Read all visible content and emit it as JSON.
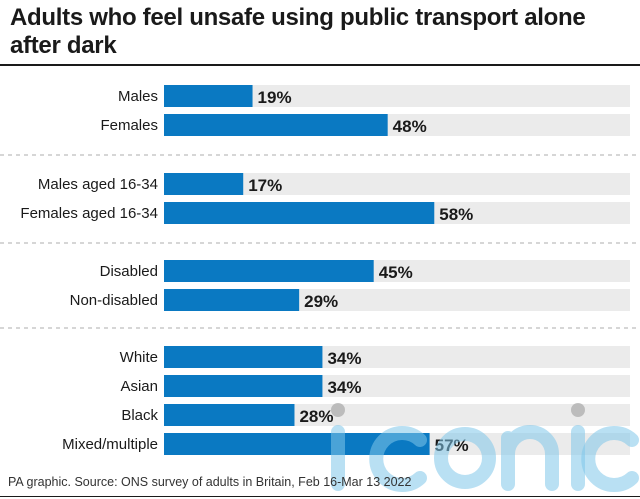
{
  "title": "Adults who feel unsafe using public transport alone after dark",
  "source": "PA graphic. Source: ONS survey of adults in Britain, Feb 16-Mar 13 2022",
  "watermark": "iconic",
  "colors": {
    "bar": "#0a79c2",
    "track": "#ebebeb",
    "divider": "#bdbdbd",
    "text": "#1a1a1a"
  },
  "chart_data": {
    "type": "bar",
    "orientation": "horizontal",
    "title": "Adults who feel unsafe using public transport alone after dark",
    "xlim": [
      0,
      100
    ],
    "grid": false,
    "legend": "none",
    "unit": "%",
    "groups": [
      {
        "categories": [
          "Males",
          "Females"
        ],
        "values": [
          19,
          48
        ]
      },
      {
        "categories": [
          "Males aged 16-34",
          "Females aged 16-34"
        ],
        "values": [
          17,
          58
        ]
      },
      {
        "categories": [
          "Disabled",
          "Non-disabled"
        ],
        "values": [
          45,
          29
        ]
      },
      {
        "categories": [
          "White",
          "Asian",
          "Black",
          "Mixed/multiple"
        ],
        "values": [
          34,
          34,
          28,
          57
        ]
      }
    ],
    "labels": [
      [
        "19%",
        "48%"
      ],
      [
        "17%",
        "58%"
      ],
      [
        "45%",
        "29%"
      ],
      [
        "34%",
        "34%",
        "28%",
        "57%"
      ]
    ]
  }
}
